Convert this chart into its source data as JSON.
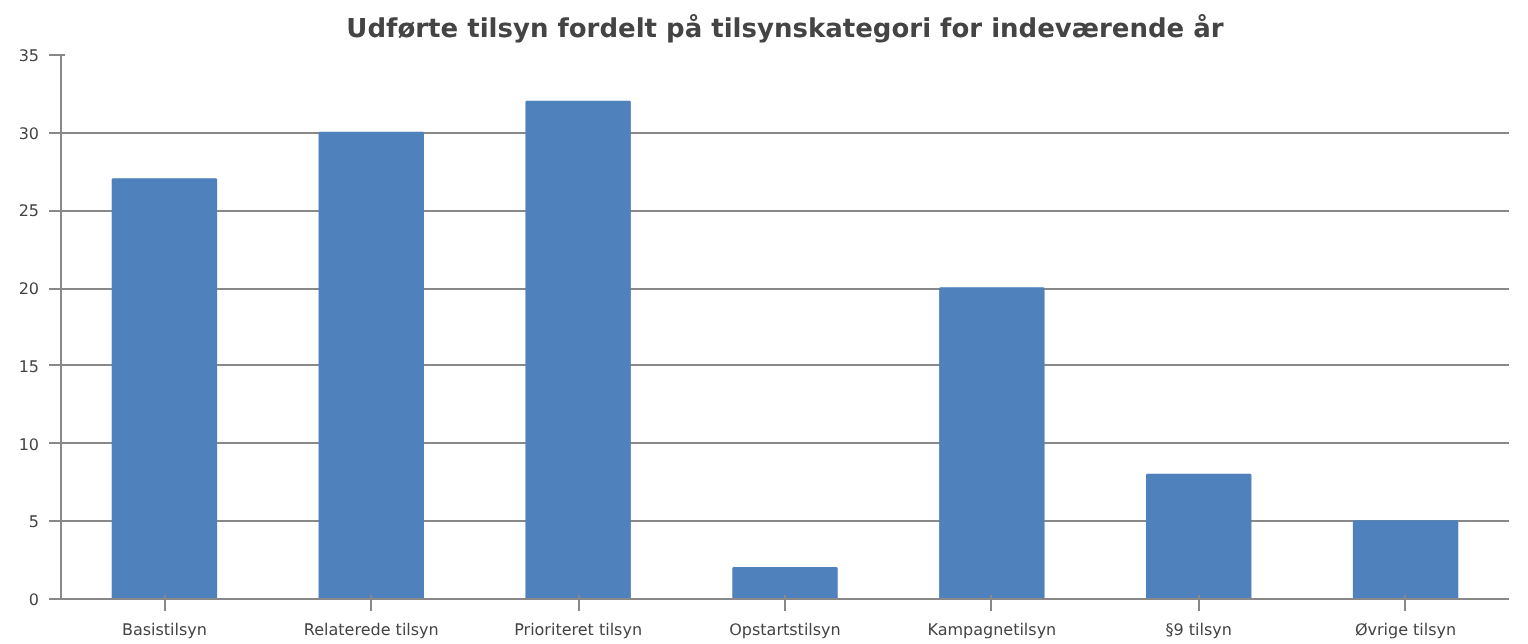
{
  "chart_data": {
    "type": "bar",
    "title": "Udførte tilsyn fordelt på tilsynskategori for indeværende år",
    "categories": [
      "Basistilsyn",
      "Relaterede tilsyn",
      "Prioriteret tilsyn",
      "Opstartstilsyn",
      "Kampagnetilsyn",
      "§9 tilsyn",
      "Øvrige tilsyn"
    ],
    "values": [
      27,
      30,
      32,
      2,
      20,
      8,
      5
    ],
    "color": "#4f81bd",
    "ylim": [
      0,
      35
    ],
    "yticks": [
      0,
      5,
      10,
      15,
      20,
      25,
      30,
      35
    ],
    "grid": "y"
  }
}
